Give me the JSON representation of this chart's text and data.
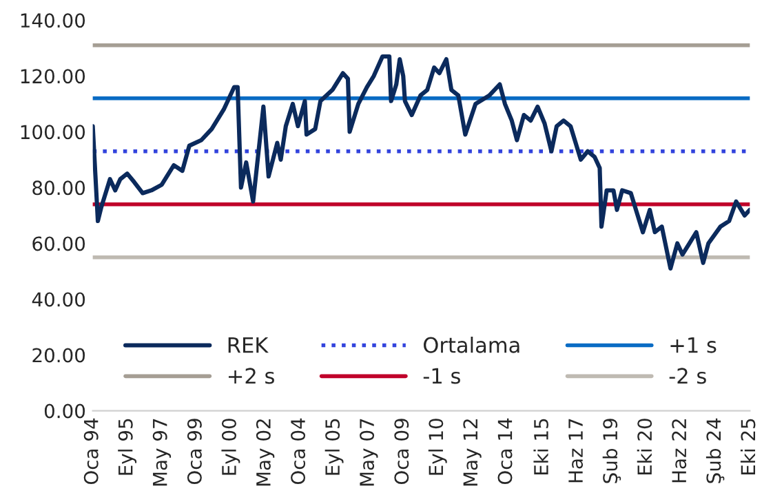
{
  "chart_data": {
    "type": "line",
    "x": [
      "1994-01",
      "1994-04",
      "1994-06",
      "1994-08",
      "1994-11",
      "1995-02",
      "1995-05",
      "1995-09",
      "1996-01",
      "1996-06",
      "1996-11",
      "1997-05",
      "1997-12",
      "1998-05",
      "1998-09",
      "1999-04",
      "1999-10",
      "2000-05",
      "2000-11",
      "2001-01",
      "2001-03",
      "2001-06",
      "2001-10",
      "2002-04",
      "2002-07",
      "2002-12",
      "2003-02",
      "2003-05",
      "2003-09",
      "2003-12",
      "2004-04",
      "2004-05",
      "2004-10",
      "2005-01",
      "2005-08",
      "2006-02",
      "2006-05",
      "2006-06",
      "2006-11",
      "2007-04",
      "2007-08",
      "2008-01",
      "2008-05",
      "2008-06",
      "2008-09",
      "2008-11",
      "2009-01",
      "2009-02",
      "2009-06",
      "2009-11",
      "2010-03",
      "2010-07",
      "2010-10",
      "2011-02",
      "2011-05",
      "2011-09",
      "2012-01",
      "2012-07",
      "2013-03",
      "2013-09",
      "2013-12",
      "2014-04",
      "2014-07",
      "2014-11",
      "2015-03",
      "2015-07",
      "2015-11",
      "2016-03",
      "2016-06",
      "2016-10",
      "2017-02",
      "2017-08",
      "2017-12",
      "2018-04",
      "2018-07",
      "2018-08",
      "2018-11",
      "2019-03",
      "2019-05",
      "2019-08",
      "2020-01",
      "2020-04",
      "2020-08",
      "2020-12",
      "2021-03",
      "2021-07",
      "2021-12",
      "2022-04",
      "2022-07",
      "2022-11",
      "2023-03",
      "2023-07",
      "2023-10",
      "2024-05",
      "2024-10",
      "2025-02",
      "2025-07",
      "2025-10"
    ],
    "series": [
      {
        "name": "REK",
        "color": "#0b2a5c",
        "values": [
          102,
          68,
          73,
          77,
          83,
          79,
          83,
          85,
          82,
          78,
          79,
          81,
          88,
          86,
          95,
          97,
          101,
          108,
          116,
          116,
          80,
          89,
          75,
          109,
          84,
          96,
          90,
          102,
          110,
          102,
          111,
          99,
          101,
          111,
          115,
          121,
          119,
          100,
          110,
          116,
          120,
          127,
          127,
          111,
          117,
          126,
          120,
          111,
          106,
          113,
          115,
          123,
          121,
          126,
          115,
          113,
          99,
          110,
          113,
          117,
          110,
          104,
          97,
          106,
          104,
          109,
          103,
          93,
          102,
          104,
          102,
          90,
          93,
          91,
          87,
          66,
          79,
          79,
          72,
          79,
          78,
          72,
          64,
          72,
          64,
          66,
          51,
          60,
          56,
          60,
          64,
          53,
          60,
          66,
          68,
          75,
          70,
          72
        ]
      }
    ],
    "ref_lines": [
      {
        "axis": "y",
        "value": 93,
        "label": "Ortalama",
        "color": "#3344dd",
        "line_style": "dotted"
      },
      {
        "axis": "y",
        "value": 112,
        "label": "+1 s",
        "color": "#0a6cc4",
        "line_style": "solid"
      },
      {
        "axis": "y",
        "value": 131,
        "label": "+2 s",
        "color": "#a59e94",
        "line_style": "solid"
      },
      {
        "axis": "y",
        "value": 74,
        "label": "-1 s",
        "color": "#c0002a",
        "line_style": "solid"
      },
      {
        "axis": "y",
        "value": 55,
        "label": "-2 s",
        "color": "#bfbab2",
        "line_style": "solid"
      }
    ],
    "xlim": [
      "1994-01",
      "2025-10"
    ],
    "xticks": [
      {
        "value": "1994-01",
        "label": "Oca 94"
      },
      {
        "value": "1995-09",
        "label": "Eyl 95"
      },
      {
        "value": "1997-05",
        "label": "May 97"
      },
      {
        "value": "1999-01",
        "label": "Oca 99"
      },
      {
        "value": "2000-09",
        "label": "Eyl 00"
      },
      {
        "value": "2002-05",
        "label": "May 02"
      },
      {
        "value": "2004-01",
        "label": "Oca 04"
      },
      {
        "value": "2005-09",
        "label": "Eyl 05"
      },
      {
        "value": "2007-05",
        "label": "May 07"
      },
      {
        "value": "2009-01",
        "label": "Oca 09"
      },
      {
        "value": "2010-09",
        "label": "Eyl 10"
      },
      {
        "value": "2012-05",
        "label": "May 12"
      },
      {
        "value": "2014-01",
        "label": "Oca 14"
      },
      {
        "value": "2015-10",
        "label": "Eki 15"
      },
      {
        "value": "2017-06",
        "label": "Haz 17"
      },
      {
        "value": "2019-02",
        "label": "Şub 19"
      },
      {
        "value": "2020-10",
        "label": "Eki 20"
      },
      {
        "value": "2022-06",
        "label": "Haz 22"
      },
      {
        "value": "2024-02",
        "label": "Şub 24"
      },
      {
        "value": "2025-10",
        "label": "Eki 25"
      }
    ],
    "ylim": [
      0,
      140
    ],
    "yticks": [
      {
        "value": 0,
        "label": "0.00"
      },
      {
        "value": 20,
        "label": "20.00"
      },
      {
        "value": 40,
        "label": "40.00"
      },
      {
        "value": 60,
        "label": "60.00"
      },
      {
        "value": 80,
        "label": "80.00"
      },
      {
        "value": 100,
        "label": "100.00"
      },
      {
        "value": 120,
        "label": "120.00"
      },
      {
        "value": 140,
        "label": "140.00"
      }
    ],
    "grid": false,
    "legend": "bottom",
    "marker": "none",
    "line_style": "solid"
  }
}
